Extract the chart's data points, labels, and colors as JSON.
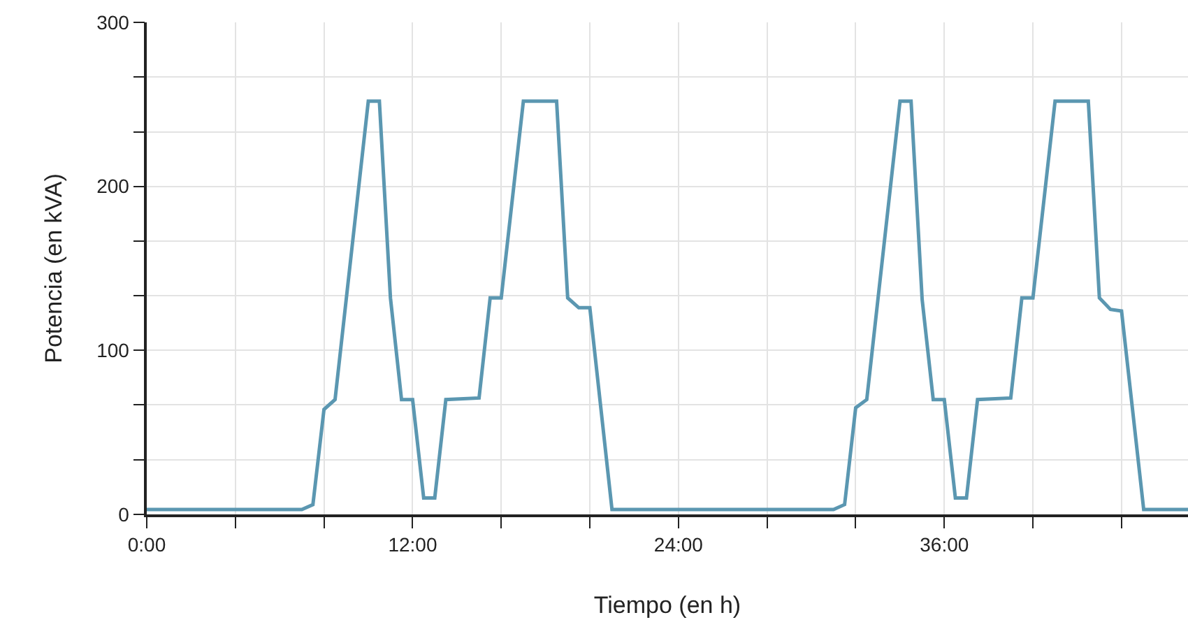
{
  "chart_data": {
    "type": "line",
    "xlabel": "Tiempo (en h)",
    "ylabel": "Potencia (en kVA)",
    "x": [
      0,
      7,
      7.5,
      8,
      8.5,
      10,
      10.5,
      11,
      11.5,
      12,
      12.5,
      13,
      13.5,
      15,
      15.5,
      16,
      17,
      18.5,
      19,
      19.5,
      20,
      21,
      31,
      31.5,
      32,
      32.5,
      34,
      34.5,
      35,
      35.5,
      36,
      36.5,
      37,
      37.5,
      39,
      39.5,
      40,
      41,
      42.5,
      43,
      43.5,
      44,
      45,
      47
    ],
    "series": [
      {
        "color": "#5b97b1",
        "values": [
          3,
          3,
          6,
          64,
          70,
          252,
          252,
          132,
          70,
          70,
          10,
          10,
          70,
          71,
          132,
          132,
          252,
          252,
          132,
          126,
          126,
          3,
          3,
          6,
          65,
          70,
          252,
          252,
          131,
          70,
          70,
          10,
          10,
          70,
          71,
          132,
          132,
          252,
          252,
          132,
          125,
          124,
          3,
          3
        ]
      }
    ],
    "xlim": [
      0,
      47
    ],
    "xticks": [
      {
        "value": 0,
        "label": "0:00"
      },
      {
        "value": 4,
        "label": null
      },
      {
        "value": 8,
        "label": null
      },
      {
        "value": 12,
        "label": "12:00"
      },
      {
        "value": 16,
        "label": null
      },
      {
        "value": 20,
        "label": null
      },
      {
        "value": 24,
        "label": "24:00"
      },
      {
        "value": 28,
        "label": null
      },
      {
        "value": 32,
        "label": null
      },
      {
        "value": 36,
        "label": "36:00"
      },
      {
        "value": 40,
        "label": null
      },
      {
        "value": 44,
        "label": null
      }
    ],
    "ylim": [
      0,
      300
    ],
    "yticks": [
      0,
      {
        "value": 33.3,
        "label": null
      },
      {
        "value": 66.7,
        "label": null
      },
      100,
      {
        "value": 133.3,
        "label": null
      },
      {
        "value": 166.7,
        "label": null
      },
      200,
      {
        "value": 233.3,
        "label": null
      },
      {
        "value": 266.7,
        "label": null
      },
      300
    ],
    "grid": true,
    "marker": "none",
    "line_style": "solid"
  }
}
